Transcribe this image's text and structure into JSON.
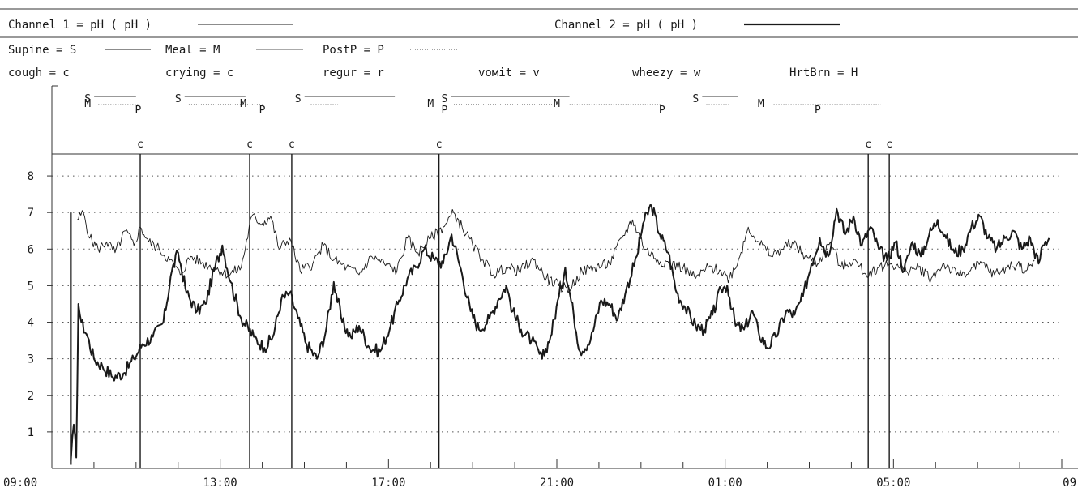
{
  "header": {
    "channel1": {
      "label": "Channel 1 = pH ( pH )",
      "style": "thin"
    },
    "channel2": {
      "label": "Channel 2 = pH ( pH )",
      "style": "thick"
    }
  },
  "legend_rows": [
    [
      {
        "label": "Supine = S",
        "style": "line"
      },
      {
        "label": "Meal   = M",
        "style": "line"
      },
      {
        "label": "PostP  = P",
        "style": "dotted"
      }
    ],
    [
      {
        "label": "cough  = c"
      },
      {
        "label": "crying = c"
      },
      {
        "label": "regur  = r"
      },
      {
        "label": "voмit  = v"
      },
      {
        "label": "wheezy = w"
      },
      {
        "label": "HrtBrn = H"
      }
    ]
  ],
  "chart_data": {
    "type": "line",
    "x_unit": "hours from 09:00",
    "xlim": [
      0,
      24
    ],
    "ylim": [
      0,
      8.6
    ],
    "yticks": [
      1,
      2,
      3,
      4,
      5,
      6,
      7,
      8
    ],
    "xticks": [
      {
        "x": 0,
        "label": "09:00"
      },
      {
        "x": 4,
        "label": "13:00"
      },
      {
        "x": 8,
        "label": "17:00"
      },
      {
        "x": 12,
        "label": "21:00"
      },
      {
        "x": 16,
        "label": "01:00"
      },
      {
        "x": 20,
        "label": "05:00"
      },
      {
        "x": 24,
        "label": "09"
      }
    ],
    "grid": "dotted-horizontal",
    "series": [
      {
        "name": "Channel 1 = pH ( pH )",
        "style": "thin",
        "points": [
          [
            0.6,
            6.8
          ],
          [
            0.75,
            7.0
          ],
          [
            0.9,
            6.3
          ],
          [
            1.1,
            6.0
          ],
          [
            1.3,
            6.2
          ],
          [
            1.5,
            5.9
          ],
          [
            1.75,
            6.5
          ],
          [
            1.95,
            6.1
          ],
          [
            2.1,
            6.6
          ],
          [
            2.3,
            6.2
          ],
          [
            2.55,
            6.0
          ],
          [
            2.8,
            5.7
          ],
          [
            3.05,
            5.3
          ],
          [
            3.3,
            5.8
          ],
          [
            3.6,
            5.6
          ],
          [
            3.85,
            5.5
          ],
          [
            4.2,
            5.3
          ],
          [
            4.5,
            5.5
          ],
          [
            4.75,
            6.9
          ],
          [
            5.0,
            6.7
          ],
          [
            5.2,
            6.9
          ],
          [
            5.4,
            6.0
          ],
          [
            5.65,
            6.3
          ],
          [
            5.9,
            5.4
          ],
          [
            6.2,
            5.6
          ],
          [
            6.45,
            6.1
          ],
          [
            6.7,
            5.7
          ],
          [
            7.0,
            5.5
          ],
          [
            7.3,
            5.3
          ],
          [
            7.6,
            5.8
          ],
          [
            7.9,
            5.6
          ],
          [
            8.2,
            5.4
          ],
          [
            8.45,
            6.3
          ],
          [
            8.7,
            5.9
          ],
          [
            9.0,
            6.3
          ],
          [
            9.3,
            6.6
          ],
          [
            9.55,
            7.0
          ],
          [
            9.75,
            6.6
          ],
          [
            10.0,
            6.1
          ],
          [
            10.25,
            5.7
          ],
          [
            10.5,
            5.3
          ],
          [
            10.8,
            5.5
          ],
          [
            11.1,
            5.4
          ],
          [
            11.45,
            5.7
          ],
          [
            11.75,
            5.2
          ],
          [
            12.05,
            5.0
          ],
          [
            12.3,
            4.9
          ],
          [
            12.6,
            5.4
          ],
          [
            12.9,
            5.5
          ],
          [
            13.25,
            5.6
          ],
          [
            13.55,
            6.3
          ],
          [
            13.8,
            6.8
          ],
          [
            14.1,
            6.0
          ],
          [
            14.4,
            5.7
          ],
          [
            14.7,
            5.6
          ],
          [
            15.0,
            5.5
          ],
          [
            15.3,
            5.2
          ],
          [
            15.6,
            5.5
          ],
          [
            15.9,
            5.4
          ],
          [
            16.1,
            5.2
          ],
          [
            16.35,
            5.8
          ],
          [
            16.55,
            6.6
          ],
          [
            16.8,
            6.2
          ],
          [
            17.1,
            5.8
          ],
          [
            17.35,
            6.0
          ],
          [
            17.6,
            6.2
          ],
          [
            17.9,
            5.8
          ],
          [
            18.2,
            5.6
          ],
          [
            18.5,
            6.2
          ],
          [
            18.75,
            5.5
          ],
          [
            19.05,
            5.7
          ],
          [
            19.35,
            5.3
          ],
          [
            19.65,
            5.5
          ],
          [
            19.95,
            5.6
          ],
          [
            20.3,
            5.4
          ],
          [
            20.6,
            5.5
          ],
          [
            20.9,
            5.2
          ],
          [
            21.2,
            5.6
          ],
          [
            21.5,
            5.3
          ],
          [
            21.8,
            5.4
          ],
          [
            22.1,
            5.6
          ],
          [
            22.4,
            5.3
          ],
          [
            22.7,
            5.5
          ],
          [
            22.95,
            5.6
          ],
          [
            23.15,
            5.4
          ],
          [
            23.35,
            5.7
          ]
        ]
      },
      {
        "name": "Channel 2 = pH ( pH )",
        "style": "thick",
        "points": [
          [
            0.45,
            0.2
          ],
          [
            0.52,
            1.2
          ],
          [
            0.58,
            0.3
          ],
          [
            0.63,
            4.5
          ],
          [
            0.7,
            4.0
          ],
          [
            0.85,
            3.6
          ],
          [
            1.0,
            3.0
          ],
          [
            1.2,
            2.8
          ],
          [
            1.45,
            2.5
          ],
          [
            1.7,
            2.6
          ],
          [
            1.95,
            3.0
          ],
          [
            2.15,
            3.4
          ],
          [
            2.4,
            3.6
          ],
          [
            2.65,
            4.0
          ],
          [
            2.85,
            5.4
          ],
          [
            3.0,
            5.9
          ],
          [
            3.2,
            4.8
          ],
          [
            3.45,
            4.3
          ],
          [
            3.65,
            4.5
          ],
          [
            3.85,
            5.4
          ],
          [
            4.05,
            6.1
          ],
          [
            4.25,
            5.1
          ],
          [
            4.5,
            4.1
          ],
          [
            4.8,
            3.6
          ],
          [
            5.05,
            3.3
          ],
          [
            5.25,
            3.6
          ],
          [
            5.45,
            4.6
          ],
          [
            5.65,
            4.8
          ],
          [
            5.85,
            4.1
          ],
          [
            6.05,
            3.4
          ],
          [
            6.3,
            3.0
          ],
          [
            6.5,
            3.7
          ],
          [
            6.7,
            5.1
          ],
          [
            6.9,
            4.0
          ],
          [
            7.1,
            3.6
          ],
          [
            7.3,
            3.9
          ],
          [
            7.55,
            3.3
          ],
          [
            7.8,
            3.2
          ],
          [
            8.05,
            3.9
          ],
          [
            8.25,
            4.6
          ],
          [
            8.45,
            5.2
          ],
          [
            8.65,
            5.5
          ],
          [
            8.85,
            6.0
          ],
          [
            9.1,
            5.7
          ],
          [
            9.3,
            5.6
          ],
          [
            9.5,
            6.4
          ],
          [
            9.75,
            5.3
          ],
          [
            9.95,
            4.3
          ],
          [
            10.15,
            3.8
          ],
          [
            10.4,
            4.1
          ],
          [
            10.6,
            4.6
          ],
          [
            10.8,
            5.0
          ],
          [
            10.95,
            4.3
          ],
          [
            11.15,
            3.8
          ],
          [
            11.4,
            3.5
          ],
          [
            11.65,
            3.0
          ],
          [
            11.85,
            3.6
          ],
          [
            12.05,
            4.7
          ],
          [
            12.2,
            5.5
          ],
          [
            12.4,
            4.2
          ],
          [
            12.55,
            3.2
          ],
          [
            12.8,
            3.5
          ],
          [
            13.05,
            4.6
          ],
          [
            13.25,
            4.5
          ],
          [
            13.45,
            4.1
          ],
          [
            13.65,
            4.9
          ],
          [
            13.9,
            5.8
          ],
          [
            14.05,
            6.7
          ],
          [
            14.25,
            7.2
          ],
          [
            14.45,
            6.4
          ],
          [
            14.65,
            5.9
          ],
          [
            14.85,
            4.8
          ],
          [
            15.05,
            4.4
          ],
          [
            15.3,
            3.9
          ],
          [
            15.5,
            3.8
          ],
          [
            15.7,
            4.2
          ],
          [
            15.9,
            4.9
          ],
          [
            16.05,
            5.0
          ],
          [
            16.25,
            3.9
          ],
          [
            16.45,
            3.8
          ],
          [
            16.65,
            4.3
          ],
          [
            16.8,
            3.7
          ],
          [
            17.0,
            3.3
          ],
          [
            17.2,
            3.6
          ],
          [
            17.45,
            4.3
          ],
          [
            17.65,
            4.2
          ],
          [
            17.85,
            4.7
          ],
          [
            18.05,
            5.6
          ],
          [
            18.25,
            6.3
          ],
          [
            18.45,
            5.8
          ],
          [
            18.65,
            7.1
          ],
          [
            18.85,
            6.4
          ],
          [
            19.05,
            6.9
          ],
          [
            19.25,
            6.1
          ],
          [
            19.45,
            6.6
          ],
          [
            19.65,
            6.0
          ],
          [
            19.85,
            5.7
          ],
          [
            20.05,
            6.2
          ],
          [
            20.25,
            5.4
          ],
          [
            20.45,
            6.2
          ],
          [
            20.65,
            5.8
          ],
          [
            20.85,
            6.4
          ],
          [
            21.05,
            6.8
          ],
          [
            21.25,
            6.3
          ],
          [
            21.45,
            5.9
          ],
          [
            21.65,
            6.0
          ],
          [
            21.85,
            6.6
          ],
          [
            22.05,
            6.9
          ],
          [
            22.25,
            6.3
          ],
          [
            22.45,
            6.0
          ],
          [
            22.65,
            6.3
          ],
          [
            22.85,
            6.5
          ],
          [
            23.05,
            6.0
          ],
          [
            23.25,
            6.3
          ],
          [
            23.45,
            5.6
          ],
          [
            23.55,
            6.1
          ],
          [
            23.7,
            6.3
          ]
        ]
      }
    ],
    "event_markers": [
      {
        "x": 2.1,
        "label": "c"
      },
      {
        "x": 4.7,
        "label": "c"
      },
      {
        "x": 5.7,
        "label": "c"
      },
      {
        "x": 9.2,
        "label": "c"
      },
      {
        "x": 19.4,
        "label": "c"
      },
      {
        "x": 19.9,
        "label": "c"
      }
    ],
    "position_markers": [
      {
        "x": 0.85,
        "label": "S",
        "row": 0
      },
      {
        "x": 0.85,
        "label": "M",
        "row": 1
      },
      {
        "x": 2.05,
        "label": "P",
        "row": 2
      },
      {
        "x": 3.0,
        "label": "S",
        "row": 0
      },
      {
        "x": 4.55,
        "label": "M",
        "row": 1
      },
      {
        "x": 5.0,
        "label": "P",
        "row": 2
      },
      {
        "x": 5.85,
        "label": "S",
        "row": 0
      },
      {
        "x": 9.0,
        "label": "M",
        "row": 1
      },
      {
        "x": 9.33,
        "label": "S",
        "row": 0
      },
      {
        "x": 9.33,
        "label": "P",
        "row": 2
      },
      {
        "x": 12.0,
        "label": "M",
        "row": 1
      },
      {
        "x": 14.5,
        "label": "P",
        "row": 2
      },
      {
        "x": 15.3,
        "label": "S",
        "row": 0
      },
      {
        "x": 16.85,
        "label": "M",
        "row": 1
      },
      {
        "x": 18.2,
        "label": "P",
        "row": 2
      }
    ],
    "supine_spans": [
      [
        0.85,
        2.0
      ],
      [
        3.0,
        4.6
      ],
      [
        5.85,
        8.15
      ],
      [
        9.33,
        12.3
      ],
      [
        15.3,
        16.3
      ]
    ],
    "postprandial_spans": [
      [
        0.95,
        2.05
      ],
      [
        3.1,
        5.0
      ],
      [
        6.0,
        6.8
      ],
      [
        9.4,
        12.0
      ],
      [
        12.15,
        14.5
      ],
      [
        15.4,
        16.1
      ],
      [
        17.0,
        19.7
      ]
    ]
  }
}
